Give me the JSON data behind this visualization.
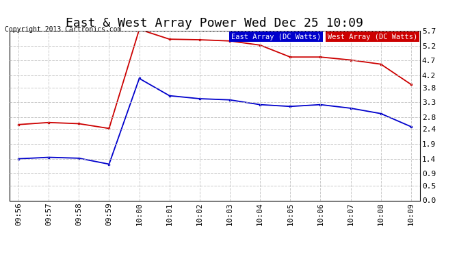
{
  "title": "East & West Array Power Wed Dec 25 10:09",
  "copyright": "Copyright 2013 Cartronics.com",
  "x_labels": [
    "09:56",
    "09:57",
    "09:58",
    "09:59",
    "10:00",
    "10:01",
    "10:02",
    "10:03",
    "10:04",
    "10:05",
    "10:06",
    "10:07",
    "10:08",
    "10:09"
  ],
  "east_label": "East Array (DC Watts)",
  "west_label": "West Array (DC Watts)",
  "east_color": "#0000cc",
  "west_color": "#cc0000",
  "east_bg": "#0000cc",
  "west_bg": "#cc0000",
  "background_color": "#ffffff",
  "plot_bg": "#ffffff",
  "grid_color": "#bbbbbb",
  "ylim": [
    0.0,
    5.7
  ],
  "yticks": [
    0.0,
    0.5,
    0.9,
    1.4,
    1.9,
    2.4,
    2.8,
    3.3,
    3.8,
    4.2,
    4.7,
    5.2,
    5.7
  ],
  "east_data": [
    1.4,
    1.45,
    1.42,
    1.22,
    4.1,
    3.52,
    3.42,
    3.38,
    3.22,
    3.16,
    3.22,
    3.1,
    2.92,
    2.48
  ],
  "west_data": [
    2.55,
    2.62,
    2.58,
    2.42,
    5.75,
    5.42,
    5.4,
    5.36,
    5.22,
    4.82,
    4.82,
    4.72,
    4.58,
    3.9
  ],
  "title_fontsize": 13,
  "tick_fontsize": 8,
  "legend_fontsize": 7.5,
  "copyright_fontsize": 7
}
